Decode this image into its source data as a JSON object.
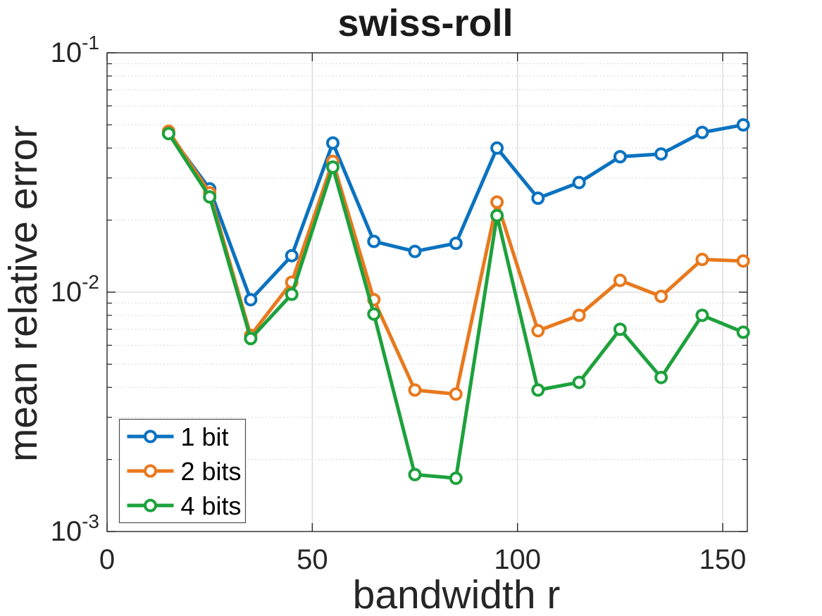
{
  "chart_data": {
    "type": "line",
    "title": "swiss-roll",
    "xlabel": "bandwidth r",
    "ylabel": "mean relative error",
    "yscale": "log",
    "xlim": [
      0,
      156
    ],
    "ylim": [
      0.001,
      0.1
    ],
    "x_ticks": [
      0,
      50,
      100,
      150
    ],
    "y_ticks": [
      {
        "value": 0.1,
        "base": "10",
        "exp": "-1"
      },
      {
        "value": 0.01,
        "base": "10",
        "exp": "-2"
      },
      {
        "value": 0.001,
        "base": "10",
        "exp": "-3"
      }
    ],
    "grid": {
      "x_major": "solid",
      "y_major": "solid",
      "y_minor": "dotted"
    },
    "legend": {
      "position": "lower-left"
    },
    "colors": {
      "axis": "#262626",
      "grid": "#d6d6d6",
      "minor_grid": "#cccccc",
      "background": "#ffffff",
      "marker_fill": "#ffffff"
    },
    "x": [
      15,
      25,
      35,
      45,
      55,
      65,
      75,
      85,
      95,
      105,
      115,
      125,
      135,
      145,
      155
    ],
    "series": [
      {
        "name": "1 bit",
        "color": "#0b72c0",
        "marker": "circle",
        "values": [
          0.046,
          0.027,
          0.0093,
          0.0142,
          0.042,
          0.0163,
          0.0148,
          0.016,
          0.04,
          0.0247,
          0.0287,
          0.0368,
          0.0378,
          0.0465,
          0.05
        ]
      },
      {
        "name": "2 bits",
        "color": "#e8791e",
        "marker": "circle",
        "values": [
          0.047,
          0.026,
          0.0066,
          0.011,
          0.0352,
          0.0093,
          0.0039,
          0.00375,
          0.0238,
          0.0069,
          0.008,
          0.0112,
          0.0096,
          0.0137,
          0.0135
        ]
      },
      {
        "name": "4 bits",
        "color": "#1da13c",
        "marker": "circle",
        "values": [
          0.046,
          0.025,
          0.0064,
          0.0098,
          0.0333,
          0.0081,
          0.00173,
          0.00167,
          0.0209,
          0.0039,
          0.0042,
          0.007,
          0.0044,
          0.008,
          0.0068
        ]
      }
    ]
  }
}
